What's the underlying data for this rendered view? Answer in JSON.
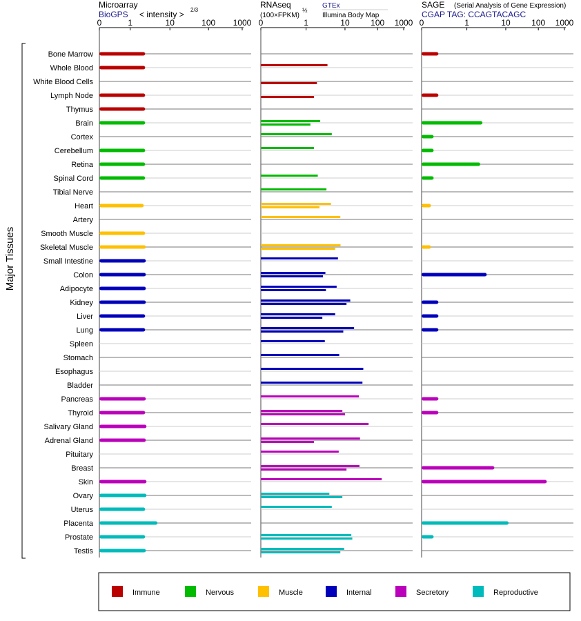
{
  "panels": {
    "microarray": {
      "title": "Microarray",
      "source": "BioGPS",
      "scale_label": "< intensity >",
      "scale_exponent": "2/3"
    },
    "rnaseq": {
      "title": "RNAseq",
      "scale_label": "(100×FPKM)",
      "scale_exponent": "½",
      "source_1": "GTEx",
      "source_2": "Illumina Body Map"
    },
    "sage": {
      "title": "SAGE",
      "title_note": "(Serial Analysis of Gene Expression)",
      "tag": "CGAP TAG: CCAGTACAGC"
    }
  },
  "group_label": "Major Tissues",
  "tick_labels": [
    "0",
    "1",
    "10",
    "100",
    "1000"
  ],
  "chart_data": {
    "type": "bar",
    "orientation": "horizontal",
    "x_scale": "power",
    "xlim": [
      0,
      1000
    ],
    "colors": {
      "Immune": "#bb0000",
      "Nervous": "#00bb00",
      "Muscle": "#ffc000",
      "Internal": "#0000bb",
      "Secretory": "#bb00bb",
      "Reproductive": "#00bbbb"
    },
    "legend": [
      "Immune",
      "Nervous",
      "Muscle",
      "Internal",
      "Secretory",
      "Reproductive"
    ],
    "tissues": [
      {
        "name": "Bone Marrow",
        "group": "Immune",
        "microarray": 2.5,
        "gtex": null,
        "illumina": null,
        "sage": 0.1
      },
      {
        "name": "Whole Blood",
        "group": "Immune",
        "microarray": 2.5,
        "gtex": 3.5,
        "illumina": null,
        "sage": null
      },
      {
        "name": "White Blood Cells",
        "group": "Immune",
        "microarray": null,
        "gtex": null,
        "illumina": 1.9,
        "sage": null
      },
      {
        "name": "Lymph Node",
        "group": "Immune",
        "microarray": 2.5,
        "gtex": null,
        "illumina": 1.6,
        "sage": 0.1
      },
      {
        "name": "Thymus",
        "group": "Immune",
        "microarray": 2.5,
        "gtex": null,
        "illumina": null,
        "sage": null
      },
      {
        "name": "Brain",
        "group": "Nervous",
        "microarray": 2.5,
        "gtex": 2.3,
        "illumina": 1.3,
        "sage": 2.5
      },
      {
        "name": "Cortex",
        "group": "Nervous",
        "microarray": null,
        "gtex": 4.5,
        "illumina": null,
        "sage": 0.05
      },
      {
        "name": "Cerebellum",
        "group": "Nervous",
        "microarray": 2.5,
        "gtex": 1.6,
        "illumina": null,
        "sage": 0.05
      },
      {
        "name": "Retina",
        "group": "Nervous",
        "microarray": 2.5,
        "gtex": null,
        "illumina": null,
        "sage": 2.2
      },
      {
        "name": "Spinal Cord",
        "group": "Nervous",
        "microarray": 2.5,
        "gtex": 2.0,
        "illumina": null,
        "sage": 0.05
      },
      {
        "name": "Tibial Nerve",
        "group": "Nervous",
        "microarray": null,
        "gtex": 3.3,
        "illumina": null,
        "sage": null
      },
      {
        "name": "Heart",
        "group": "Muscle",
        "microarray": 2.3,
        "gtex": 4.3,
        "illumina": 2.2,
        "sage": 0.03
      },
      {
        "name": "Artery",
        "group": "Muscle",
        "microarray": null,
        "gtex": 7.5,
        "illumina": null,
        "sage": null
      },
      {
        "name": "Smooth Muscle",
        "group": "Muscle",
        "microarray": 2.5,
        "gtex": null,
        "illumina": null,
        "sage": null
      },
      {
        "name": "Skeletal Muscle",
        "group": "Muscle",
        "microarray": 2.6,
        "gtex": 7.6,
        "illumina": 5.5,
        "sage": 0.03
      },
      {
        "name": "Small Intestine",
        "group": "Internal",
        "microarray": 2.6,
        "gtex": 6.5,
        "illumina": null,
        "sage": null
      },
      {
        "name": "Colon",
        "group": "Internal",
        "microarray": 2.6,
        "gtex": 3.1,
        "illumina": 2.7,
        "sage": 3.2
      },
      {
        "name": "Adipocyte",
        "group": "Internal",
        "microarray": 2.6,
        "gtex": 6.0,
        "illumina": 3.2,
        "sage": null
      },
      {
        "name": "Kidney",
        "group": "Internal",
        "microarray": 2.6,
        "gtex": 14,
        "illumina": 11,
        "sage": 0.1
      },
      {
        "name": "Liver",
        "group": "Internal",
        "microarray": 2.5,
        "gtex": 5.5,
        "illumina": 2.6,
        "sage": 0.1
      },
      {
        "name": "Lung",
        "group": "Internal",
        "microarray": 2.5,
        "gtex": 18,
        "illumina": 9,
        "sage": 0.1
      },
      {
        "name": "Spleen",
        "group": "Internal",
        "microarray": null,
        "gtex": 3.0,
        "illumina": null,
        "sage": null
      },
      {
        "name": "Stomach",
        "group": "Internal",
        "microarray": null,
        "gtex": 7.0,
        "illumina": null,
        "sage": null
      },
      {
        "name": "Esophagus",
        "group": "Internal",
        "microarray": null,
        "gtex": 34,
        "illumina": null,
        "sage": null
      },
      {
        "name": "Bladder",
        "group": "Internal",
        "microarray": null,
        "gtex": 32,
        "illumina": null,
        "sage": null
      },
      {
        "name": "Pancreas",
        "group": "Secretory",
        "microarray": 2.6,
        "gtex": 25,
        "illumina": null,
        "sage": 0.1
      },
      {
        "name": "Thyroid",
        "group": "Secretory",
        "microarray": 2.5,
        "gtex": 8.5,
        "illumina": 10,
        "sage": 0.1
      },
      {
        "name": "Salivary Gland",
        "group": "Secretory",
        "microarray": 2.7,
        "gtex": 50,
        "illumina": null,
        "sage": null
      },
      {
        "name": "Adrenal Gland",
        "group": "Secretory",
        "microarray": 2.6,
        "gtex": 27,
        "illumina": 1.6,
        "sage": null
      },
      {
        "name": "Pituitary",
        "group": "Secretory",
        "microarray": null,
        "gtex": 6.8,
        "illumina": null,
        "sage": null
      },
      {
        "name": "Breast",
        "group": "Secretory",
        "microarray": null,
        "gtex": 26,
        "illumina": 11,
        "sage": 5.0
      },
      {
        "name": "Skin",
        "group": "Secretory",
        "microarray": 2.7,
        "gtex": 140,
        "illumina": null,
        "sage": 200
      },
      {
        "name": "Ovary",
        "group": "Reproductive",
        "microarray": 2.7,
        "gtex": 3.9,
        "illumina": 8.5,
        "sage": null
      },
      {
        "name": "Uterus",
        "group": "Reproductive",
        "microarray": 2.5,
        "gtex": 4.5,
        "illumina": null,
        "sage": null
      },
      {
        "name": "Placenta",
        "group": "Reproductive",
        "microarray": 5.0,
        "gtex": null,
        "illumina": null,
        "sage": 12
      },
      {
        "name": "Prostate",
        "group": "Reproductive",
        "microarray": 2.5,
        "gtex": 15,
        "illumina": 16,
        "sage": 0.05
      },
      {
        "name": "Testis",
        "group": "Reproductive",
        "microarray": 2.6,
        "gtex": 9.5,
        "illumina": 7.5,
        "sage": null
      }
    ]
  }
}
